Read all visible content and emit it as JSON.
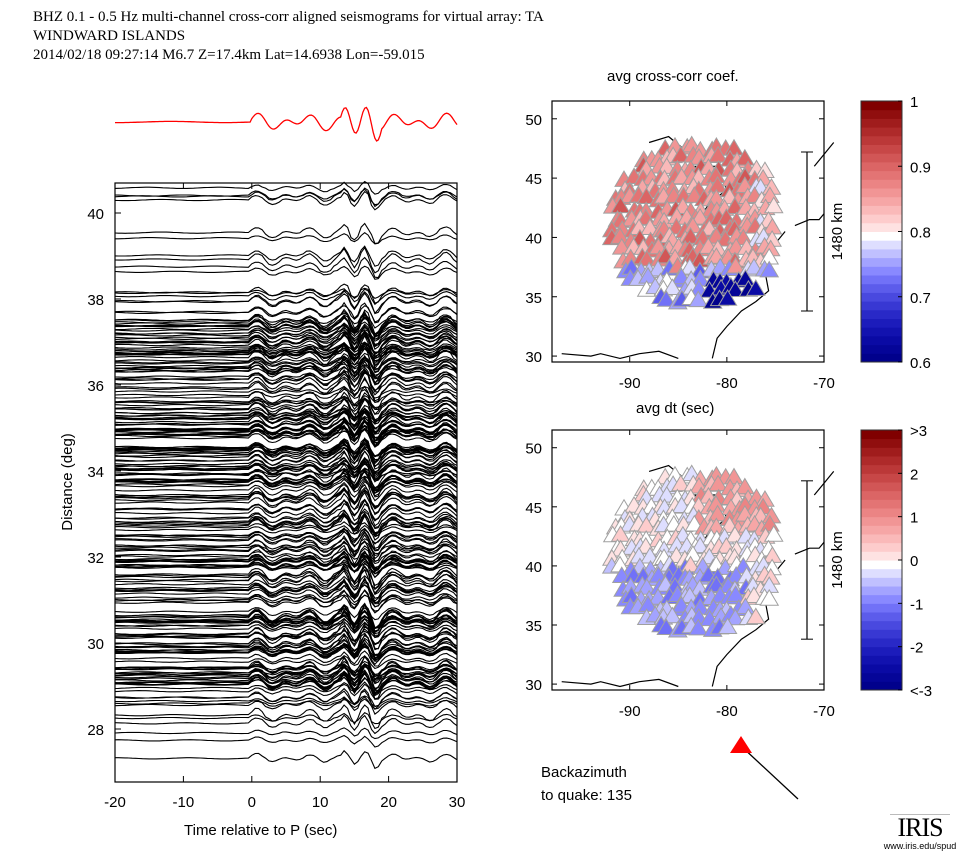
{
  "header": {
    "line1": "BHZ  0.1 - 0.5 Hz  multi-channel cross-corr aligned seismograms for virtual array: TA",
    "line2": "WINDWARD ISLANDS",
    "line3": "2014/02/18  09:27:14  M6.7  Z=17.4km Lat=14.6938 Lon=-59.015"
  },
  "chart_data": [
    {
      "type": "line",
      "name": "seismogram-record-section",
      "title": "",
      "xlabel": "Time relative to P (sec)",
      "ylabel": "Distance (deg)",
      "xlim": [
        -20,
        30
      ],
      "ylim": [
        27,
        41
      ],
      "xticks": [
        "-20",
        "-10",
        "0",
        "10",
        "20",
        "30"
      ],
      "yticks": [
        "28",
        "30",
        "32",
        "34",
        "36",
        "38",
        "40"
      ],
      "stack_color": "#ff0000",
      "trace_color": "#000000",
      "note": "Hundreds of aligned seismogram traces plotted at their epicentral distance (approx. 27.3–40.8 deg); signal onset at ~0 s with strongest arrivals near 15–18 s. Red stacked trace above the panel."
    },
    {
      "type": "scatter",
      "name": "avg-cross-corr-map",
      "title": "avg cross-corr coef.",
      "xlabel": "",
      "xlim": [
        -98,
        -70
      ],
      "ylim": [
        29.5,
        51.5
      ],
      "xticks": [
        "-90",
        "-80",
        "-70"
      ],
      "yticks": [
        "30",
        "35",
        "40",
        "45",
        "50"
      ],
      "scale_bar": "1480 km",
      "colorbar": {
        "ticks": [
          "0.6",
          "0.7",
          "0.8",
          "0.9",
          "1"
        ],
        "range": [
          0.6,
          1.0
        ],
        "colormap": "blue-white-red"
      },
      "note": "Mostly pink/red (0.82–0.93) stations; dark blue (~0.6) stations near southeast edge (~35-36N, -78 to -81)."
    },
    {
      "type": "scatter",
      "name": "avg-dt-map",
      "title": "avg dt (sec)",
      "xlabel": "",
      "xlim": [
        -98,
        -70
      ],
      "ylim": [
        29.5,
        51.5
      ],
      "xticks": [
        "-90",
        "-80",
        "-70"
      ],
      "yticks": [
        "30",
        "35",
        "40",
        "45",
        "50"
      ],
      "scale_bar": "1480 km",
      "colorbar": {
        "ticks": [
          "<-3",
          "-2",
          "-1",
          "0",
          "1",
          "2",
          ">3"
        ],
        "range": [
          -3,
          3
        ],
        "colormap": "blue-white-red"
      },
      "note": "Northeast stations slightly positive (pink, ~+0.5 to +1); south-central stations negative (light blue, ~-0.5 to -1)."
    }
  ],
  "backazimuth": {
    "label_line1": "Backazimuth",
    "label_line2": "to quake:  135",
    "value_deg": 135,
    "marker_color": "#ff0000"
  },
  "logo": {
    "name": "IRIS",
    "url_text": "www.iris.edu/spud"
  }
}
